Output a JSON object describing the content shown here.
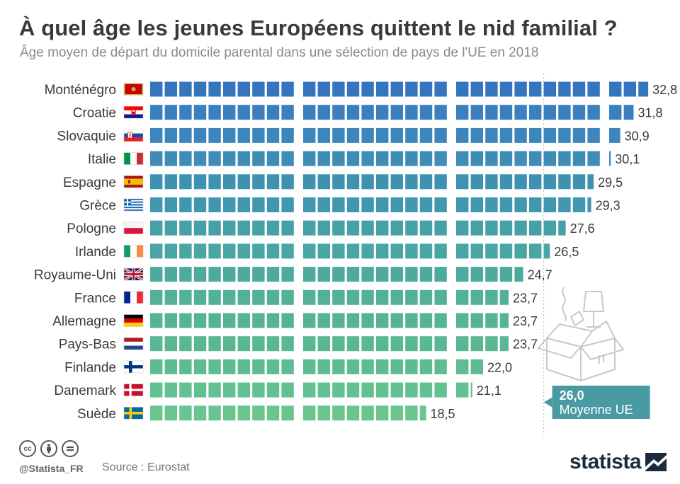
{
  "header": {
    "title": "À quel âge les jeunes Européens quittent le nid familial ?",
    "subtitle": "Âge moyen de départ du domicile parental dans une sélection de pays de l'UE en 2018"
  },
  "chart_data": {
    "type": "bar",
    "orientation": "horizontal",
    "unit_per_block": 1,
    "categories": [
      "Monténégro",
      "Croatie",
      "Slovaquie",
      "Italie",
      "Espagne",
      "Grèce",
      "Pologne",
      "Irlande",
      "Royaume-Uni",
      "France",
      "Allemagne",
      "Pays-Bas",
      "Finlande",
      "Danemark",
      "Suède"
    ],
    "values": [
      32.8,
      31.8,
      30.9,
      30.1,
      29.5,
      29.3,
      27.6,
      26.5,
      24.7,
      23.7,
      23.7,
      23.7,
      22.0,
      21.1,
      18.5
    ],
    "value_labels": [
      "32,8",
      "31,8",
      "30,9",
      "30,1",
      "29,5",
      "29,3",
      "27,6",
      "26,5",
      "24,7",
      "23,7",
      "23,7",
      "23,7",
      "22,0",
      "21,1",
      "18,5"
    ],
    "flags": [
      "montenegro",
      "croatia",
      "slovakia",
      "italy",
      "spain",
      "greece",
      "poland",
      "ireland",
      "united-kingdom",
      "france",
      "germany",
      "netherlands",
      "finland",
      "denmark",
      "sweden"
    ],
    "colors": [
      "#3476bd",
      "#3a7fbf",
      "#3d86bd",
      "#3f8cb8",
      "#3f91b3",
      "#4196b0",
      "#46a0a7",
      "#49a6a2",
      "#4dab9d",
      "#53b198",
      "#56b496",
      "#59b794",
      "#5fbc92",
      "#63c08f",
      "#69c48e"
    ],
    "average": {
      "value": 26.0,
      "value_label": "26,0",
      "label": "Moyenne UE",
      "color": "#4a9aa4"
    },
    "grid": false
  },
  "footer": {
    "handle": "@Statista_FR",
    "source": "Source : Eurostat",
    "brand": "statista",
    "icons": [
      "cc-icon",
      "by-icon",
      "nd-icon"
    ]
  }
}
